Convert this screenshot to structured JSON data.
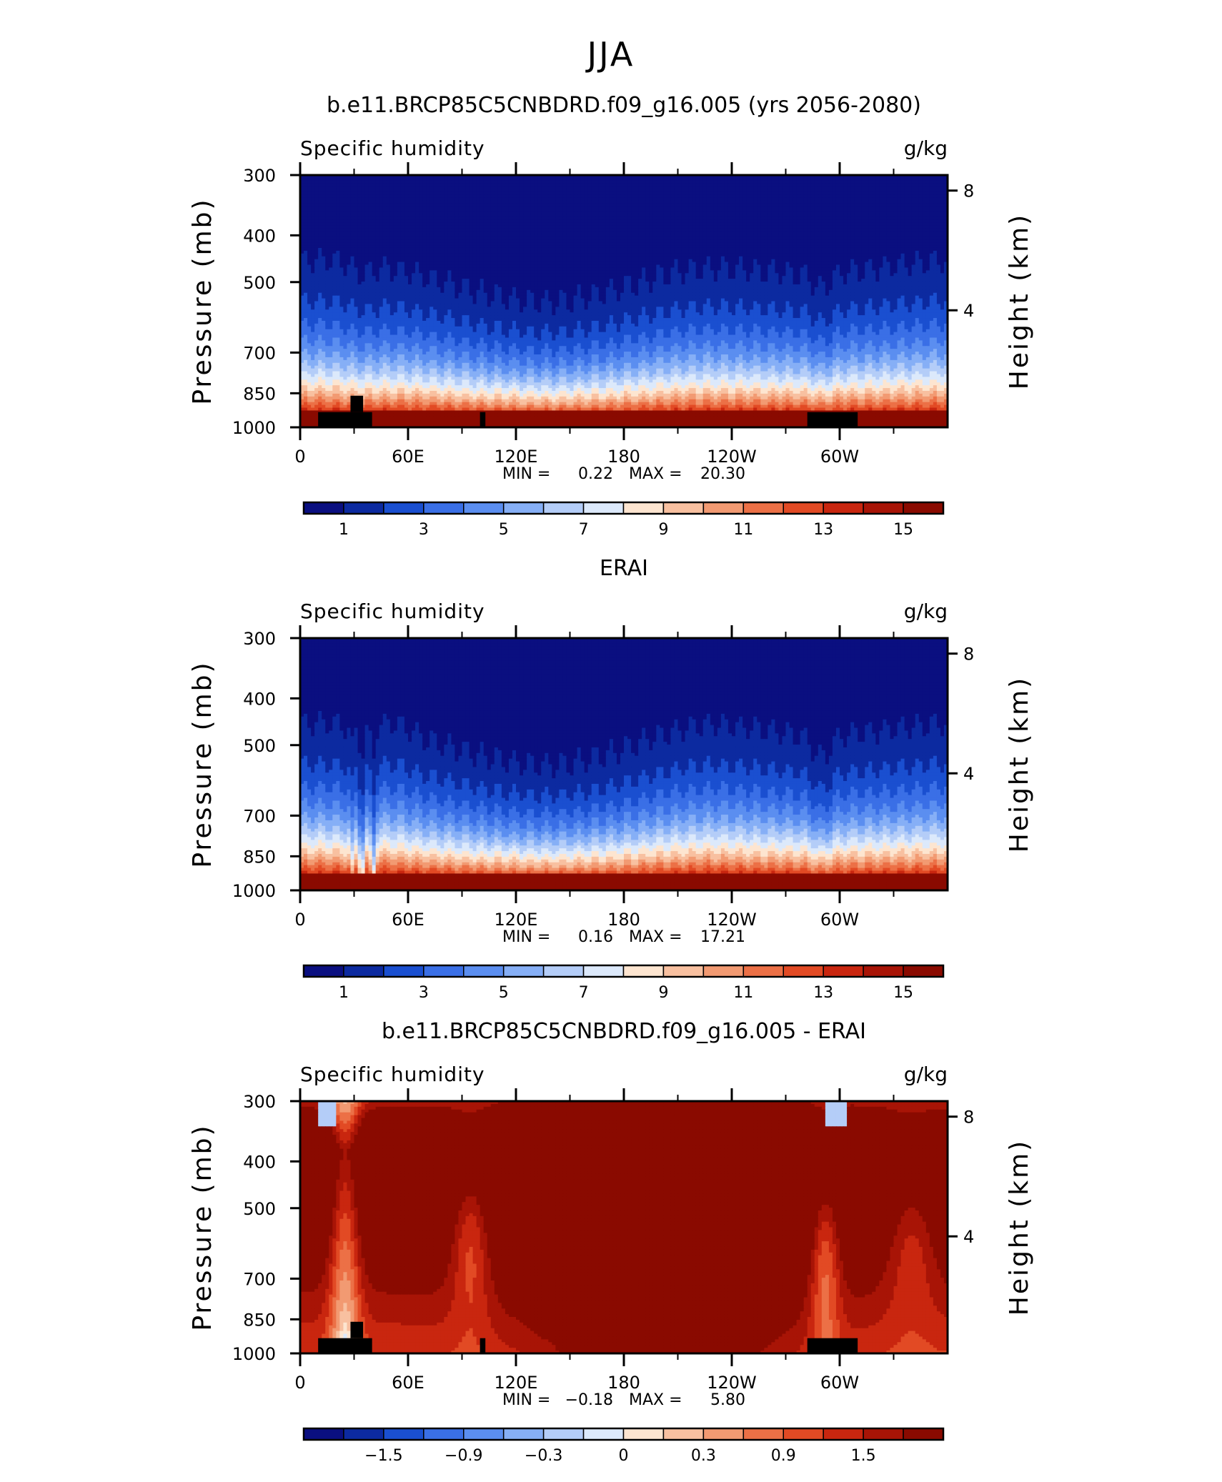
{
  "figure": {
    "main_title": "JJA"
  },
  "palette": {
    "seq": [
      "#0a0f80",
      "#0c2aa0",
      "#1a4fd0",
      "#3a6fe6",
      "#5b8ef0",
      "#86aff6",
      "#b4cdf8",
      "#dce9fb",
      "#fde5d0",
      "#f8c0a0",
      "#f29a72",
      "#ec7046",
      "#e24a24",
      "#c9260f",
      "#a81406",
      "#8a0a00"
    ],
    "land": "#000000"
  },
  "chart_data": [
    {
      "type": "heatmap",
      "title": "b.e11.BRCP85C5CNBDRD.f09_g16.005 (yrs 2056-2080)",
      "left_label": "Specific humidity",
      "right_label": "g/kg",
      "ylabel": "Pressure (mb)",
      "ylabel_right": "Height (km)",
      "y_ticks": [
        "300",
        "400",
        "500",
        "700",
        "850",
        "1000"
      ],
      "y_tick_values": [
        300,
        400,
        500,
        700,
        850,
        1000
      ],
      "right_ticks": [
        "8",
        "4"
      ],
      "right_tick_values": [
        8,
        4
      ],
      "x_ticks": [
        "0",
        "60E",
        "120E",
        "180",
        "120W",
        "60W"
      ],
      "x_tick_values": [
        0,
        60,
        120,
        180,
        240,
        300
      ],
      "xlim": [
        0,
        360
      ],
      "ylim": [
        1000,
        300
      ],
      "min_label": "MIN =",
      "min_value": "0.22",
      "max_label": "MAX =",
      "max_value": "20.30",
      "colorbar_labels": [
        "1",
        "3",
        "5",
        "7",
        "9",
        "11",
        "13",
        "15"
      ],
      "colorbar_levels": [
        1,
        2,
        3,
        4,
        5,
        6,
        7,
        8,
        9,
        10,
        11,
        12,
        13,
        14,
        15
      ],
      "field_kind": "humidity",
      "variant": 0,
      "land_blocks": [
        {
          "lon": [
            10,
            40
          ],
          "p": [
            930,
            1000
          ]
        },
        {
          "lon": [
            28,
            35
          ],
          "p": [
            860,
            930
          ]
        },
        {
          "lon": [
            100,
            103
          ],
          "p": [
            930,
            1000
          ]
        },
        {
          "lon": [
            282,
            310
          ],
          "p": [
            930,
            1000
          ]
        }
      ]
    },
    {
      "type": "heatmap",
      "title": "ERAI",
      "left_label": "Specific humidity",
      "right_label": "g/kg",
      "ylabel": "Pressure (mb)",
      "ylabel_right": "Height (km)",
      "y_ticks": [
        "300",
        "400",
        "500",
        "700",
        "850",
        "1000"
      ],
      "y_tick_values": [
        300,
        400,
        500,
        700,
        850,
        1000
      ],
      "right_ticks": [
        "8",
        "4"
      ],
      "right_tick_values": [
        8,
        4
      ],
      "x_ticks": [
        "0",
        "60E",
        "120E",
        "180",
        "120W",
        "60W"
      ],
      "x_tick_values": [
        0,
        60,
        120,
        180,
        240,
        300
      ],
      "xlim": [
        0,
        360
      ],
      "ylim": [
        1000,
        300
      ],
      "min_label": "MIN =",
      "min_value": "0.16",
      "max_label": "MAX =",
      "max_value": "17.21",
      "colorbar_labels": [
        "1",
        "3",
        "5",
        "7",
        "9",
        "11",
        "13",
        "15"
      ],
      "colorbar_levels": [
        1,
        2,
        3,
        4,
        5,
        6,
        7,
        8,
        9,
        10,
        11,
        12,
        13,
        14,
        15
      ],
      "field_kind": "humidity",
      "variant": 1,
      "land_blocks": []
    },
    {
      "type": "heatmap",
      "title": "b.e11.BRCP85C5CNBDRD.f09_g16.005 - ERAI",
      "left_label": "Specific humidity",
      "right_label": "g/kg",
      "ylabel": "Pressure (mb)",
      "ylabel_right": "Height (km)",
      "y_ticks": [
        "300",
        "400",
        "500",
        "700",
        "850",
        "1000"
      ],
      "y_tick_values": [
        300,
        400,
        500,
        700,
        850,
        1000
      ],
      "right_ticks": [
        "8",
        "4"
      ],
      "right_tick_values": [
        8,
        4
      ],
      "x_ticks": [
        "0",
        "60E",
        "120E",
        "180",
        "120W",
        "60W"
      ],
      "x_tick_values": [
        0,
        60,
        120,
        180,
        240,
        300
      ],
      "xlim": [
        0,
        360
      ],
      "ylim": [
        1000,
        300
      ],
      "min_label": "MIN =",
      "min_value": "−0.18",
      "max_label": "MAX =",
      "max_value": "5.80",
      "colorbar_labels": [
        "−1.5",
        "−0.9",
        "−0.3",
        "0",
        "0.3",
        "0.9",
        "1.5"
      ],
      "colorbar_levels": [
        -1.8,
        -1.5,
        -1.2,
        -0.9,
        -0.6,
        -0.3,
        -0.1,
        0,
        0.1,
        0.3,
        0.6,
        0.9,
        1.2,
        1.5,
        1.8
      ],
      "field_kind": "difference",
      "variant": 2,
      "land_blocks": [
        {
          "lon": [
            10,
            40
          ],
          "p": [
            930,
            1000
          ]
        },
        {
          "lon": [
            28,
            35
          ],
          "p": [
            860,
            930
          ]
        },
        {
          "lon": [
            100,
            103
          ],
          "p": [
            930,
            1000
          ]
        },
        {
          "lon": [
            282,
            310
          ],
          "p": [
            930,
            1000
          ]
        }
      ]
    }
  ]
}
